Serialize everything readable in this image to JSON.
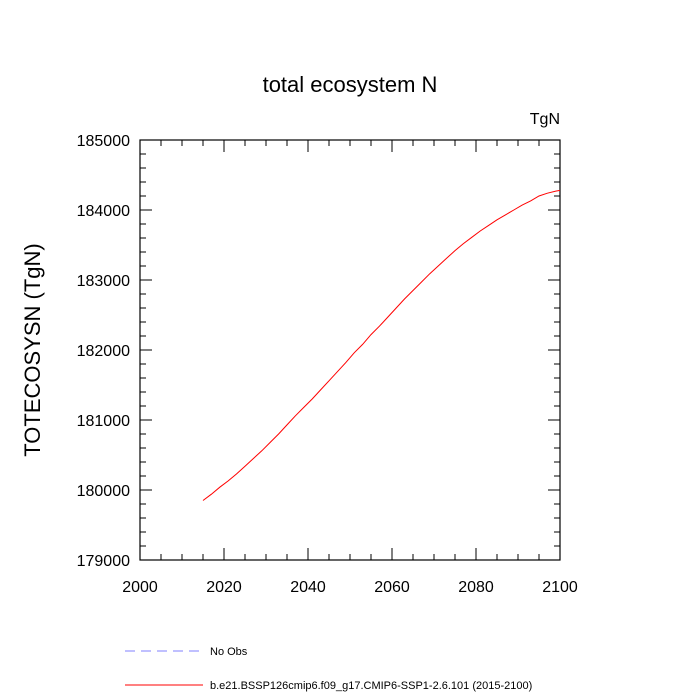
{
  "chart_data": {
    "type": "line",
    "title": "total ecosystem N",
    "units_label": "TgN",
    "ylabel": "TOTECOSYSN  (TgN)",
    "xlabel": "",
    "xlim": [
      2000,
      2100
    ],
    "ylim": [
      179000,
      185000
    ],
    "x_ticks": [
      2000,
      2020,
      2040,
      2060,
      2080,
      2100
    ],
    "y_ticks": [
      179000,
      180000,
      181000,
      182000,
      183000,
      184000,
      185000
    ],
    "x_minor_step": 5,
    "y_minor_step": 200,
    "grid": false,
    "legend_position": "bottom-left",
    "series": [
      {
        "name": "No Obs",
        "color": "#8080ff",
        "style": "dashed",
        "x": [],
        "y": []
      },
      {
        "name": "b.e21.BSSP126cmip6.f09_g17.CMIP6-SSP1-2.6.101 (2015-2100)",
        "color": "#ff0000",
        "style": "solid",
        "x": [
          2015,
          2017,
          2019,
          2021,
          2023,
          2025,
          2027,
          2029,
          2031,
          2033,
          2035,
          2037,
          2039,
          2041,
          2043,
          2045,
          2047,
          2049,
          2051,
          2053,
          2055,
          2057,
          2059,
          2061,
          2063,
          2065,
          2067,
          2069,
          2071,
          2073,
          2075,
          2077,
          2079,
          2081,
          2083,
          2085,
          2087,
          2089,
          2091,
          2093,
          2095,
          2097,
          2099,
          2100
        ],
        "y": [
          179850,
          179940,
          180040,
          180130,
          180230,
          180340,
          180450,
          180560,
          180680,
          180800,
          180930,
          181060,
          181180,
          181300,
          181430,
          181560,
          181690,
          181820,
          181960,
          182080,
          182220,
          182340,
          182470,
          182600,
          182730,
          182850,
          182970,
          183090,
          183200,
          183310,
          183420,
          183520,
          183610,
          183700,
          183780,
          183860,
          183930,
          184000,
          184070,
          184130,
          184200,
          184240,
          184270,
          184280
        ]
      }
    ]
  }
}
